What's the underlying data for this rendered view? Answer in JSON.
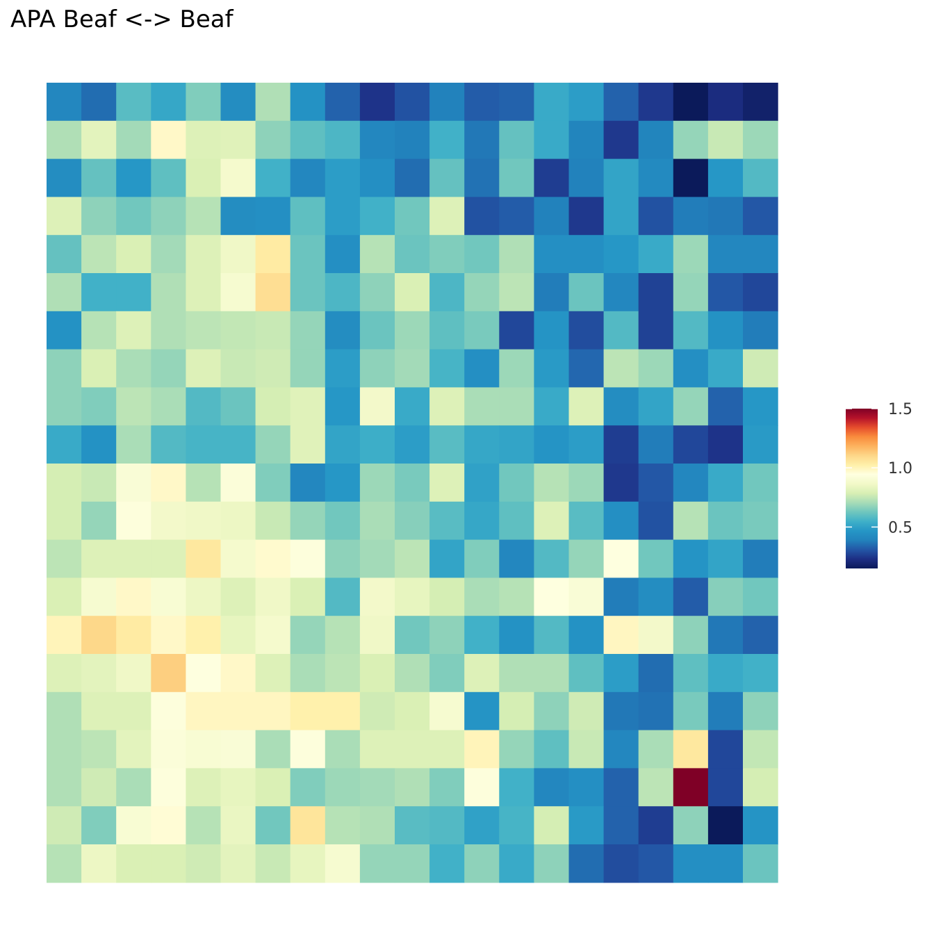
{
  "chart_data": {
    "type": "heatmap",
    "title": "APA Beaf <-> Beaf",
    "xlabel": "",
    "ylabel": "",
    "grid": false,
    "legend": {
      "position": "right",
      "ticks": [
        1.5,
        1.0,
        0.5
      ],
      "tick_labels": [
        "1.5",
        "1.0",
        "0.5"
      ],
      "min": 0.15,
      "max": 1.5
    },
    "colorscale": [
      "#0b1a5a",
      "#1d2e84",
      "#2356a6",
      "#2282bc",
      "#2596c6",
      "#3fb0c8",
      "#6fc6be",
      "#a7dcb7",
      "#d8efb4",
      "#f2f9c8",
      "#ffffe0",
      "#fff0aa",
      "#fdd789",
      "#fdb35f",
      "#f98c3d",
      "#e64d2c",
      "#b5122a",
      "#7f0026"
    ],
    "rows": [
      [
        0.41,
        0.35,
        0.59,
        0.52,
        0.65,
        0.43,
        0.72,
        0.45,
        0.33,
        0.24,
        0.3,
        0.39,
        0.32,
        0.33,
        0.53,
        0.49,
        0.33,
        0.25,
        0.15,
        0.22,
        0.18
      ],
      [
        0.72,
        0.82,
        0.7,
        0.98,
        0.8,
        0.81,
        0.67,
        0.6,
        0.57,
        0.41,
        0.39,
        0.55,
        0.37,
        0.61,
        0.53,
        0.4,
        0.25,
        0.4,
        0.68,
        0.76,
        0.69
      ],
      [
        0.43,
        0.61,
        0.47,
        0.6,
        0.79,
        0.88,
        0.55,
        0.41,
        0.49,
        0.44,
        0.35,
        0.61,
        0.36,
        0.63,
        0.26,
        0.39,
        0.51,
        0.42,
        0.13,
        0.47,
        0.58
      ],
      [
        0.8,
        0.67,
        0.63,
        0.67,
        0.73,
        0.43,
        0.44,
        0.6,
        0.49,
        0.55,
        0.63,
        0.8,
        0.3,
        0.32,
        0.39,
        0.25,
        0.51,
        0.3,
        0.38,
        0.37,
        0.31
      ],
      [
        0.61,
        0.74,
        0.79,
        0.7,
        0.8,
        0.86,
        1.04,
        0.62,
        0.44,
        0.73,
        0.62,
        0.65,
        0.63,
        0.72,
        0.44,
        0.44,
        0.47,
        0.53,
        0.69,
        0.41,
        0.41
      ],
      [
        0.72,
        0.55,
        0.55,
        0.72,
        0.8,
        0.89,
        1.08,
        0.62,
        0.57,
        0.67,
        0.79,
        0.57,
        0.68,
        0.74,
        0.38,
        0.62,
        0.41,
        0.27,
        0.68,
        0.31,
        0.28
      ],
      [
        0.45,
        0.73,
        0.8,
        0.72,
        0.74,
        0.75,
        0.76,
        0.68,
        0.43,
        0.62,
        0.69,
        0.6,
        0.64,
        0.28,
        0.46,
        0.29,
        0.58,
        0.27,
        0.58,
        0.45,
        0.38
      ],
      [
        0.67,
        0.79,
        0.71,
        0.68,
        0.8,
        0.76,
        0.77,
        0.68,
        0.49,
        0.67,
        0.7,
        0.56,
        0.44,
        0.69,
        0.48,
        0.34,
        0.74,
        0.69,
        0.44,
        0.53,
        0.77
      ],
      [
        0.67,
        0.65,
        0.74,
        0.71,
        0.58,
        0.62,
        0.78,
        0.81,
        0.47,
        0.87,
        0.53,
        0.8,
        0.71,
        0.71,
        0.53,
        0.8,
        0.43,
        0.51,
        0.68,
        0.33,
        0.47
      ],
      [
        0.53,
        0.45,
        0.71,
        0.58,
        0.56,
        0.56,
        0.68,
        0.81,
        0.51,
        0.54,
        0.49,
        0.59,
        0.52,
        0.51,
        0.46,
        0.49,
        0.26,
        0.38,
        0.28,
        0.24,
        0.48
      ],
      [
        0.78,
        0.76,
        0.91,
        0.98,
        0.73,
        0.92,
        0.65,
        0.41,
        0.47,
        0.69,
        0.64,
        0.8,
        0.5,
        0.63,
        0.73,
        0.69,
        0.25,
        0.31,
        0.41,
        0.53,
        0.63
      ],
      [
        0.78,
        0.68,
        0.93,
        0.87,
        0.86,
        0.85,
        0.76,
        0.68,
        0.63,
        0.71,
        0.66,
        0.59,
        0.52,
        0.6,
        0.8,
        0.59,
        0.44,
        0.3,
        0.73,
        0.62,
        0.64
      ],
      [
        0.74,
        0.8,
        0.8,
        0.8,
        1.05,
        0.88,
        0.97,
        0.93,
        0.67,
        0.7,
        0.74,
        0.51,
        0.65,
        0.41,
        0.58,
        0.68,
        0.94,
        0.63,
        0.46,
        0.51,
        0.38
      ],
      [
        0.79,
        0.89,
        0.98,
        0.9,
        0.85,
        0.8,
        0.86,
        0.79,
        0.58,
        0.87,
        0.83,
        0.78,
        0.71,
        0.73,
        0.94,
        0.91,
        0.38,
        0.43,
        0.32,
        0.66,
        0.63
      ],
      [
        1.0,
        1.1,
        1.04,
        0.98,
        1.02,
        0.83,
        0.88,
        0.68,
        0.73,
        0.86,
        0.63,
        0.67,
        0.55,
        0.45,
        0.58,
        0.45,
        0.99,
        0.87,
        0.67,
        0.37,
        0.33
      ],
      [
        0.8,
        0.82,
        0.86,
        1.12,
        0.94,
        0.98,
        0.8,
        0.71,
        0.74,
        0.79,
        0.72,
        0.65,
        0.8,
        0.72,
        0.72,
        0.6,
        0.49,
        0.35,
        0.6,
        0.53,
        0.55
      ],
      [
        0.72,
        0.8,
        0.8,
        0.93,
        0.99,
        0.99,
        0.99,
        1.02,
        1.02,
        0.77,
        0.79,
        0.89,
        0.46,
        0.78,
        0.67,
        0.77,
        0.37,
        0.36,
        0.64,
        0.38,
        0.67
      ],
      [
        0.72,
        0.74,
        0.82,
        0.92,
        0.9,
        0.91,
        0.71,
        0.93,
        0.71,
        0.8,
        0.8,
        0.8,
        1.0,
        0.68,
        0.6,
        0.76,
        0.41,
        0.71,
        1.05,
        0.28,
        0.75
      ],
      [
        0.72,
        0.77,
        0.71,
        0.93,
        0.8,
        0.83,
        0.79,
        0.65,
        0.69,
        0.7,
        0.72,
        0.65,
        0.93,
        0.55,
        0.41,
        0.44,
        0.33,
        0.74,
        1.5,
        0.28,
        0.78
      ],
      [
        0.77,
        0.65,
        0.9,
        0.96,
        0.73,
        0.84,
        0.63,
        1.06,
        0.73,
        0.72,
        0.59,
        0.58,
        0.5,
        0.56,
        0.78,
        0.48,
        0.33,
        0.26,
        0.67,
        0.15,
        0.46
      ],
      [
        0.73,
        0.85,
        0.79,
        0.79,
        0.77,
        0.82,
        0.76,
        0.83,
        0.89,
        0.68,
        0.68,
        0.55,
        0.67,
        0.53,
        0.67,
        0.35,
        0.29,
        0.31,
        0.44,
        0.44,
        0.62
      ]
    ]
  }
}
